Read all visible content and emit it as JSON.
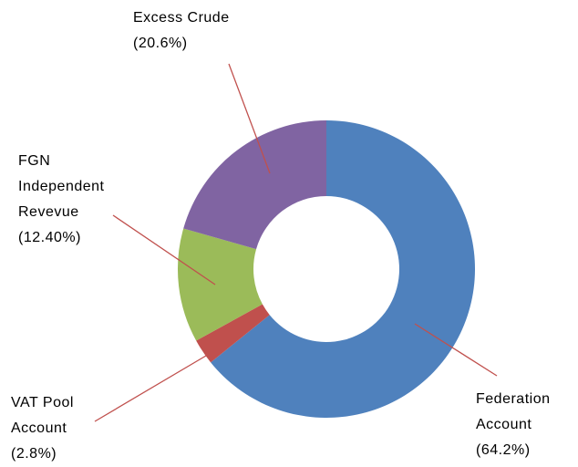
{
  "chart_data": {
    "type": "donut",
    "categories": [
      "Federation Account",
      "VAT Pool Account",
      "FGN Independent Revevue",
      "Excess Crude"
    ],
    "values": [
      64.2,
      2.8,
      12.4,
      20.6
    ],
    "value_labels": [
      "(64.2%)",
      "(2.8%)",
      "(12.40%)",
      "(20.6%)"
    ],
    "colors": [
      "#4f81bd",
      "#c0504d",
      "#9bbb59",
      "#8064a2"
    ]
  }
}
